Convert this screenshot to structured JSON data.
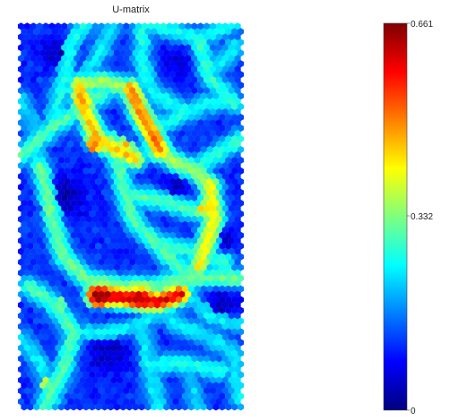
{
  "chart_data": {
    "type": "heatmap",
    "subtype": "som-u-matrix-hexagonal",
    "title": "U-matrix",
    "colormap": "jet",
    "colorbar": {
      "min": 0,
      "max": 0.661,
      "tick_labels": [
        "0.661",
        "0.332",
        "0"
      ],
      "tick_values": [
        0.661,
        0.332,
        0
      ]
    },
    "value_range": [
      0,
      0.661
    ],
    "background_level": 0.1,
    "ridges": [
      {
        "path": [
          [
            0.02,
            0.34
          ],
          [
            0.15,
            0.27
          ],
          [
            0.28,
            0.22
          ],
          [
            0.38,
            0.18
          ]
        ],
        "value": 0.3
      },
      {
        "path": [
          [
            0.15,
            0.27
          ],
          [
            0.24,
            0.05
          ],
          [
            0.3,
            0.0
          ]
        ],
        "value": 0.26
      },
      {
        "path": [
          [
            0.55,
            0.0
          ],
          [
            0.55,
            0.1
          ],
          [
            0.6,
            0.18
          ],
          [
            0.75,
            0.23
          ]
        ],
        "value": 0.26
      },
      {
        "path": [
          [
            0.58,
            0.0
          ],
          [
            0.8,
            0.04
          ],
          [
            0.95,
            0.0
          ]
        ],
        "value": 0.26
      },
      {
        "path": [
          [
            0.8,
            0.04
          ],
          [
            0.85,
            0.14
          ],
          [
            0.96,
            0.21
          ]
        ],
        "value": 0.28
      },
      {
        "path": [
          [
            0.96,
            0.06
          ],
          [
            0.85,
            0.14
          ]
        ],
        "value": 0.24
      },
      {
        "path": [
          [
            0.42,
            0.0
          ],
          [
            0.37,
            0.07
          ],
          [
            0.3,
            0.13
          ]
        ],
        "value": 0.24
      },
      {
        "path": [
          [
            0.27,
            0.16
          ],
          [
            0.3,
            0.23
          ],
          [
            0.35,
            0.3
          ],
          [
            0.45,
            0.33
          ],
          [
            0.52,
            0.35
          ]
        ],
        "value": 0.45
      },
      {
        "path": [
          [
            0.27,
            0.16
          ],
          [
            0.38,
            0.15
          ],
          [
            0.5,
            0.17
          ]
        ],
        "value": 0.36
      },
      {
        "path": [
          [
            0.5,
            0.17
          ],
          [
            0.55,
            0.24
          ],
          [
            0.6,
            0.29
          ],
          [
            0.63,
            0.33
          ]
        ],
        "value": 0.5
      },
      {
        "path": [
          [
            0.4,
            0.3
          ],
          [
            0.45,
            0.37
          ],
          [
            0.47,
            0.44
          ],
          [
            0.52,
            0.52
          ],
          [
            0.6,
            0.56
          ],
          [
            0.66,
            0.6
          ],
          [
            0.75,
            0.65
          ]
        ],
        "value": 0.3
      },
      {
        "path": [
          [
            0.47,
            0.44
          ],
          [
            0.65,
            0.46
          ],
          [
            0.8,
            0.49
          ]
        ],
        "value": 0.3
      },
      {
        "path": [
          [
            0.63,
            0.33
          ],
          [
            0.7,
            0.36
          ],
          [
            0.78,
            0.38
          ],
          [
            0.85,
            0.42
          ]
        ],
        "value": 0.36
      },
      {
        "path": [
          [
            0.78,
            0.38
          ],
          [
            0.88,
            0.34
          ],
          [
            0.98,
            0.3
          ]
        ],
        "value": 0.28
      },
      {
        "path": [
          [
            0.62,
            0.27
          ],
          [
            0.72,
            0.24
          ],
          [
            0.82,
            0.21
          ],
          [
            0.92,
            0.2
          ]
        ],
        "value": 0.26
      },
      {
        "path": [
          [
            0.85,
            0.42
          ],
          [
            0.87,
            0.5
          ],
          [
            0.84,
            0.56
          ],
          [
            0.8,
            0.63
          ]
        ],
        "value": 0.42
      },
      {
        "path": [
          [
            0.6,
            0.56
          ],
          [
            0.7,
            0.58
          ],
          [
            0.82,
            0.6
          ],
          [
            0.92,
            0.62
          ]
        ],
        "value": 0.28
      },
      {
        "path": [
          [
            0.1,
            0.37
          ],
          [
            0.15,
            0.5
          ],
          [
            0.2,
            0.6
          ],
          [
            0.3,
            0.66
          ],
          [
            0.45,
            0.68
          ],
          [
            0.6,
            0.68
          ],
          [
            0.75,
            0.66
          ],
          [
            0.98,
            0.66
          ]
        ],
        "value": 0.32
      },
      {
        "path": [
          [
            0.35,
            0.7
          ],
          [
            0.48,
            0.71
          ],
          [
            0.62,
            0.72
          ],
          [
            0.72,
            0.7
          ]
        ],
        "value": 0.6
      },
      {
        "path": [
          [
            0.6,
            0.72
          ],
          [
            0.7,
            0.78
          ],
          [
            0.82,
            0.8
          ],
          [
            0.95,
            0.85
          ],
          [
            0.98,
            0.97
          ]
        ],
        "value": 0.24
      },
      {
        "path": [
          [
            0.05,
            0.68
          ],
          [
            0.15,
            0.72
          ],
          [
            0.25,
            0.8
          ],
          [
            0.2,
            0.9
          ],
          [
            0.12,
            0.99
          ]
        ],
        "value": 0.3
      },
      {
        "path": [
          [
            0.25,
            0.8
          ],
          [
            0.4,
            0.8
          ],
          [
            0.55,
            0.78
          ],
          [
            0.62,
            0.72
          ]
        ],
        "value": 0.24
      },
      {
        "path": [
          [
            0.55,
            0.78
          ],
          [
            0.58,
            0.88
          ],
          [
            0.62,
            0.99
          ]
        ],
        "value": 0.24
      },
      {
        "path": [
          [
            0.58,
            0.88
          ],
          [
            0.75,
            0.88
          ],
          [
            0.9,
            0.9
          ]
        ],
        "value": 0.26
      },
      {
        "path": [
          [
            0.02,
            0.82
          ],
          [
            0.1,
            0.88
          ],
          [
            0.16,
            0.97
          ]
        ],
        "value": 0.24
      },
      {
        "path": [
          [
            0.75,
            0.88
          ],
          [
            0.78,
            0.96
          ],
          [
            0.8,
            1.0
          ]
        ],
        "value": 0.22
      },
      {
        "path": [
          [
            0.7,
            0.66
          ],
          [
            0.85,
            0.76
          ],
          [
            0.98,
            0.78
          ]
        ],
        "value": 0.24
      },
      {
        "path": [
          [
            0.02,
            0.2
          ],
          [
            0.08,
            0.28
          ],
          [
            0.1,
            0.37
          ]
        ],
        "value": 0.22
      }
    ],
    "hotspots": [
      {
        "x": 0.36,
        "y": 0.71,
        "radius": 0.09,
        "value": 0.661
      },
      {
        "x": 0.54,
        "y": 0.71,
        "radius": 0.08,
        "value": 0.62
      },
      {
        "x": 0.22,
        "y": 0.71,
        "radius": 0.06,
        "value": 0.52
      },
      {
        "x": 0.33,
        "y": 0.32,
        "radius": 0.07,
        "value": 0.52
      },
      {
        "x": 0.48,
        "y": 0.31,
        "radius": 0.05,
        "value": 0.48
      },
      {
        "x": 0.28,
        "y": 0.2,
        "radius": 0.06,
        "value": 0.48
      },
      {
        "x": 0.6,
        "y": 0.3,
        "radius": 0.05,
        "value": 0.54
      },
      {
        "x": 0.82,
        "y": 0.48,
        "radius": 0.05,
        "value": 0.5
      },
      {
        "x": 0.45,
        "y": 0.28,
        "radius": 0.04,
        "value": 0.44
      },
      {
        "x": 0.12,
        "y": 0.93,
        "radius": 0.04,
        "value": 0.46
      }
    ],
    "dark_regions": [
      {
        "x": 0.2,
        "y": 0.45,
        "radius": 0.13,
        "value": 0.03
      },
      {
        "x": 0.18,
        "y": 0.08,
        "radius": 0.1,
        "value": 0.04
      },
      {
        "x": 0.4,
        "y": 0.85,
        "radius": 0.12,
        "value": 0.04
      },
      {
        "x": 0.9,
        "y": 0.73,
        "radius": 0.1,
        "value": 0.04
      },
      {
        "x": 0.7,
        "y": 0.42,
        "radius": 0.08,
        "value": 0.05
      },
      {
        "x": 0.7,
        "y": 0.1,
        "radius": 0.09,
        "value": 0.06
      },
      {
        "x": 0.93,
        "y": 0.56,
        "radius": 0.06,
        "value": 0.05
      }
    ]
  }
}
